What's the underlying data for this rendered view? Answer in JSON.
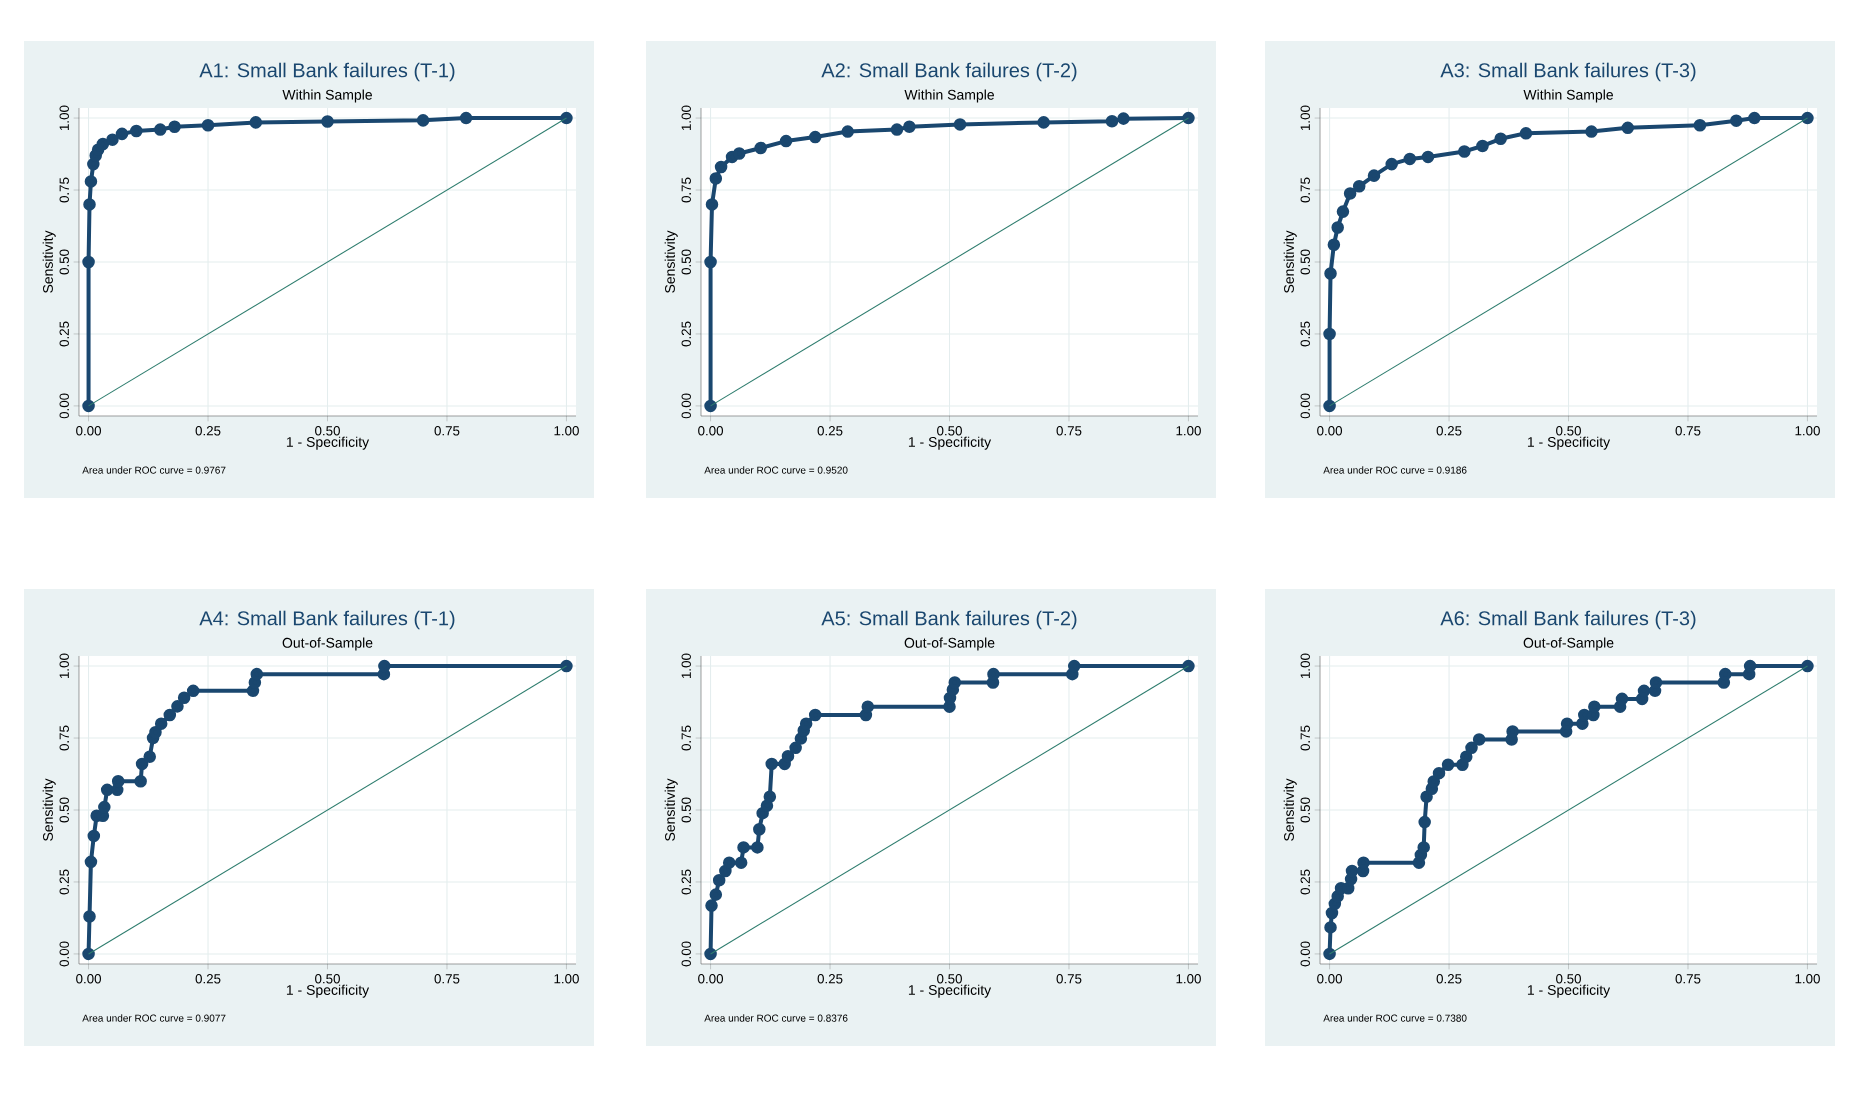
{
  "chart_data": [
    {
      "type": "line",
      "title": "A1: Small Bank failures (T-1)",
      "subtitle": "Within Sample",
      "xlabel": "1 - Specificity",
      "ylabel": "Sensitivity",
      "annotations": [
        "Area under ROC curve = 0.9767"
      ],
      "xlim": [
        -0.02,
        1.02
      ],
      "ylim": [
        -0.035,
        1.035
      ],
      "xticks": [
        {
          "value": 0,
          "label": "0.00"
        },
        {
          "value": 0.25,
          "label": "0.25"
        },
        {
          "value": 0.5,
          "label": "0.50"
        },
        {
          "value": 0.75,
          "label": "0.75"
        },
        {
          "value": 1,
          "label": "1.00"
        }
      ],
      "yticks": [
        {
          "value": 0,
          "label": "0.00"
        },
        {
          "value": 0.25,
          "label": "0.25"
        },
        {
          "value": 0.5,
          "label": "0.50"
        },
        {
          "value": 0.75,
          "label": "0.75"
        },
        {
          "value": 1,
          "label": "1.00"
        }
      ],
      "grid": true,
      "series": [
        {
          "color": "#1a476f",
          "marker": "circle",
          "x": [
            0,
            0,
            0.002,
            0.005,
            0.01,
            0.015,
            0.02,
            0.03,
            0.05,
            0.07,
            0.1,
            0.15,
            0.18,
            0.25,
            0.35,
            0.5,
            0.7,
            0.79,
            1
          ],
          "values": [
            0,
            0.5,
            0.7,
            0.78,
            0.84,
            0.87,
            0.89,
            0.91,
            0.925,
            0.945,
            0.955,
            0.96,
            0.97,
            0.975,
            0.985,
            0.988,
            0.992,
            1,
            1
          ]
        },
        {
          "type": "line",
          "color": "#2e7d6e",
          "marker": "none",
          "x": [
            0,
            1
          ],
          "values": [
            0,
            1
          ]
        }
      ]
    },
    {
      "type": "line",
      "title": "A2: Small Bank failures (T-2)",
      "subtitle": "Within Sample",
      "xlabel": "1 - Specificity",
      "ylabel": "Sensitivity",
      "annotations": [
        "Area under ROC curve = 0.9520"
      ],
      "xlim": [
        -0.02,
        1.02
      ],
      "ylim": [
        -0.035,
        1.035
      ],
      "xticks": [
        {
          "value": 0,
          "label": "0.00"
        },
        {
          "value": 0.25,
          "label": "0.25"
        },
        {
          "value": 0.5,
          "label": "0.50"
        },
        {
          "value": 0.75,
          "label": "0.75"
        },
        {
          "value": 1,
          "label": "1.00"
        }
      ],
      "yticks": [
        {
          "value": 0,
          "label": "0.00"
        },
        {
          "value": 0.25,
          "label": "0.25"
        },
        {
          "value": 0.5,
          "label": "0.50"
        },
        {
          "value": 0.75,
          "label": "0.75"
        },
        {
          "value": 1,
          "label": "1.00"
        }
      ],
      "grid": true,
      "series": [
        {
          "color": "#1a476f",
          "marker": "circle",
          "x": [
            0,
            0,
            0.003,
            0.011,
            0.022,
            0.045,
            0.06,
            0.105,
            0.158,
            0.219,
            0.287,
            0.39,
            0.416,
            0.522,
            0.697,
            0.84,
            0.864,
            1
          ],
          "values": [
            0,
            0.5,
            0.7,
            0.79,
            0.83,
            0.865,
            0.877,
            0.896,
            0.92,
            0.934,
            0.953,
            0.96,
            0.97,
            0.978,
            0.985,
            0.989,
            0.998,
            1
          ]
        },
        {
          "type": "line",
          "color": "#2e7d6e",
          "marker": "none",
          "x": [
            0,
            1
          ],
          "values": [
            0,
            1
          ]
        }
      ]
    },
    {
      "type": "line",
      "title": "A3: Small Bank failures (T-3)",
      "subtitle": "Within Sample",
      "xlabel": "1 - Specificity",
      "ylabel": "Sensitivity",
      "annotations": [
        "Area under ROC curve = 0.9186"
      ],
      "xlim": [
        -0.02,
        1.02
      ],
      "ylim": [
        -0.035,
        1.035
      ],
      "xticks": [
        {
          "value": 0,
          "label": "0.00"
        },
        {
          "value": 0.25,
          "label": "0.25"
        },
        {
          "value": 0.5,
          "label": "0.50"
        },
        {
          "value": 0.75,
          "label": "0.75"
        },
        {
          "value": 1,
          "label": "1.00"
        }
      ],
      "yticks": [
        {
          "value": 0,
          "label": "0.00"
        },
        {
          "value": 0.25,
          "label": "0.25"
        },
        {
          "value": 0.5,
          "label": "0.50"
        },
        {
          "value": 0.75,
          "label": "0.75"
        },
        {
          "value": 1,
          "label": "1.00"
        }
      ],
      "grid": true,
      "series": [
        {
          "color": "#1a476f",
          "marker": "circle",
          "x": [
            0,
            0,
            0.002,
            0.009,
            0.017,
            0.028,
            0.043,
            0.062,
            0.093,
            0.13,
            0.168,
            0.206,
            0.282,
            0.32,
            0.358,
            0.411,
            0.548,
            0.624,
            0.775,
            0.851,
            0.889,
            1
          ],
          "values": [
            0,
            0.25,
            0.46,
            0.56,
            0.62,
            0.675,
            0.738,
            0.763,
            0.8,
            0.84,
            0.858,
            0.865,
            0.884,
            0.903,
            0.928,
            0.947,
            0.953,
            0.966,
            0.975,
            0.991,
            1,
            1
          ]
        },
        {
          "type": "line",
          "color": "#2e7d6e",
          "marker": "none",
          "x": [
            0,
            1
          ],
          "values": [
            0,
            1
          ]
        }
      ]
    },
    {
      "type": "line",
      "title": "A4: Small Bank failures (T-1)",
      "subtitle": "Out-of-Sample",
      "xlabel": "1 - Specificity",
      "ylabel": "Sensitivity",
      "annotations": [
        "Area under ROC curve = 0.9077"
      ],
      "xlim": [
        -0.02,
        1.02
      ],
      "ylim": [
        -0.035,
        1.035
      ],
      "xticks": [
        {
          "value": 0,
          "label": "0.00"
        },
        {
          "value": 0.25,
          "label": "0.25"
        },
        {
          "value": 0.5,
          "label": "0.50"
        },
        {
          "value": 0.75,
          "label": "0.75"
        },
        {
          "value": 1,
          "label": "1.00"
        }
      ],
      "yticks": [
        {
          "value": 0,
          "label": "0.00"
        },
        {
          "value": 0.25,
          "label": "0.25"
        },
        {
          "value": 0.5,
          "label": "0.50"
        },
        {
          "value": 0.75,
          "label": "0.75"
        },
        {
          "value": 1,
          "label": "1.00"
        }
      ],
      "grid": true,
      "series": [
        {
          "color": "#1a476f",
          "marker": "circle",
          "x": [
            0,
            0.002,
            0.005,
            0.011,
            0.017,
            0.03,
            0.033,
            0.039,
            0.06,
            0.062,
            0.109,
            0.112,
            0.128,
            0.135,
            0.14,
            0.152,
            0.17,
            0.186,
            0.2,
            0.219,
            0.344,
            0.348,
            0.352,
            0.618,
            0.619,
            1
          ],
          "values": [
            0,
            0.13,
            0.32,
            0.41,
            0.48,
            0.48,
            0.51,
            0.57,
            0.57,
            0.6,
            0.6,
            0.66,
            0.685,
            0.75,
            0.77,
            0.8,
            0.83,
            0.86,
            0.89,
            0.914,
            0.914,
            0.943,
            0.972,
            0.972,
            1,
            1
          ]
        },
        {
          "type": "line",
          "color": "#2e7d6e",
          "marker": "none",
          "x": [
            0,
            1
          ],
          "values": [
            0,
            1
          ]
        }
      ]
    },
    {
      "type": "line",
      "title": "A5: Small Bank failures (T-2)",
      "subtitle": "Out-of-Sample",
      "xlabel": "1 - Specificity",
      "ylabel": "Sensitivity",
      "annotations": [
        "Area under ROC curve = 0.8376"
      ],
      "xlim": [
        -0.02,
        1.02
      ],
      "ylim": [
        -0.035,
        1.035
      ],
      "xticks": [
        {
          "value": 0,
          "label": "0.00"
        },
        {
          "value": 0.25,
          "label": "0.25"
        },
        {
          "value": 0.5,
          "label": "0.50"
        },
        {
          "value": 0.75,
          "label": "0.75"
        },
        {
          "value": 1,
          "label": "1.00"
        }
      ],
      "yticks": [
        {
          "value": 0,
          "label": "0.00"
        },
        {
          "value": 0.25,
          "label": "0.25"
        },
        {
          "value": 0.5,
          "label": "0.50"
        },
        {
          "value": 0.75,
          "label": "0.75"
        },
        {
          "value": 1,
          "label": "1.00"
        }
      ],
      "grid": true,
      "series": [
        {
          "color": "#1a476f",
          "marker": "circle",
          "x": [
            0,
            0.002,
            0.011,
            0.018,
            0.031,
            0.039,
            0.064,
            0.069,
            0.098,
            0.102,
            0.109,
            0.118,
            0.124,
            0.128,
            0.155,
            0.162,
            0.178,
            0.189,
            0.195,
            0.2,
            0.219,
            0.325,
            0.329,
            0.5,
            0.501,
            0.507,
            0.511,
            0.591,
            0.592,
            0.757,
            0.761,
            1
          ],
          "values": [
            0,
            0.168,
            0.206,
            0.256,
            0.288,
            0.317,
            0.317,
            0.37,
            0.37,
            0.433,
            0.489,
            0.515,
            0.546,
            0.66,
            0.66,
            0.687,
            0.716,
            0.748,
            0.776,
            0.8,
            0.83,
            0.83,
            0.859,
            0.859,
            0.889,
            0.918,
            0.943,
            0.943,
            0.972,
            0.972,
            1,
            1
          ]
        },
        {
          "type": "line",
          "color": "#2e7d6e",
          "marker": "none",
          "x": [
            0,
            1
          ],
          "values": [
            0,
            1
          ]
        }
      ]
    },
    {
      "type": "line",
      "title": "A6: Small Bank failures (T-3)",
      "subtitle": "Out-of-Sample",
      "xlabel": "1 - Specificity",
      "ylabel": "Sensitivity",
      "annotations": [
        "Area under ROC curve = 0.7380"
      ],
      "xlim": [
        -0.02,
        1.02
      ],
      "ylim": [
        -0.035,
        1.035
      ],
      "xticks": [
        {
          "value": 0,
          "label": "0.00"
        },
        {
          "value": 0.25,
          "label": "0.25"
        },
        {
          "value": 0.5,
          "label": "0.50"
        },
        {
          "value": 0.75,
          "label": "0.75"
        },
        {
          "value": 1,
          "label": "1.00"
        }
      ],
      "yticks": [
        {
          "value": 0,
          "label": "0.00"
        },
        {
          "value": 0.25,
          "label": "0.25"
        },
        {
          "value": 0.5,
          "label": "0.50"
        },
        {
          "value": 0.75,
          "label": "0.75"
        },
        {
          "value": 1,
          "label": "1.00"
        }
      ],
      "grid": true,
      "series": [
        {
          "color": "#1a476f",
          "marker": "circle",
          "x": [
            0,
            0.002,
            0.005,
            0.011,
            0.017,
            0.024,
            0.039,
            0.045,
            0.047,
            0.07,
            0.071,
            0.187,
            0.191,
            0.197,
            0.199,
            0.203,
            0.214,
            0.218,
            0.229,
            0.248,
            0.278,
            0.286,
            0.297,
            0.313,
            0.381,
            0.383,
            0.495,
            0.497,
            0.529,
            0.533,
            0.552,
            0.554,
            0.608,
            0.612,
            0.654,
            0.658,
            0.681,
            0.683,
            0.825,
            0.828,
            0.878,
            0.88,
            1
          ],
          "values": [
            0,
            0.092,
            0.142,
            0.174,
            0.2,
            0.228,
            0.228,
            0.26,
            0.288,
            0.288,
            0.317,
            0.317,
            0.344,
            0.37,
            0.458,
            0.546,
            0.574,
            0.599,
            0.628,
            0.657,
            0.657,
            0.685,
            0.716,
            0.745,
            0.745,
            0.773,
            0.773,
            0.8,
            0.8,
            0.83,
            0.83,
            0.859,
            0.859,
            0.886,
            0.886,
            0.914,
            0.914,
            0.943,
            0.943,
            0.972,
            0.972,
            1,
            1
          ]
        },
        {
          "type": "line",
          "color": "#2e7d6e",
          "marker": "none",
          "x": [
            0,
            1
          ],
          "values": [
            0,
            1
          ]
        }
      ]
    }
  ]
}
